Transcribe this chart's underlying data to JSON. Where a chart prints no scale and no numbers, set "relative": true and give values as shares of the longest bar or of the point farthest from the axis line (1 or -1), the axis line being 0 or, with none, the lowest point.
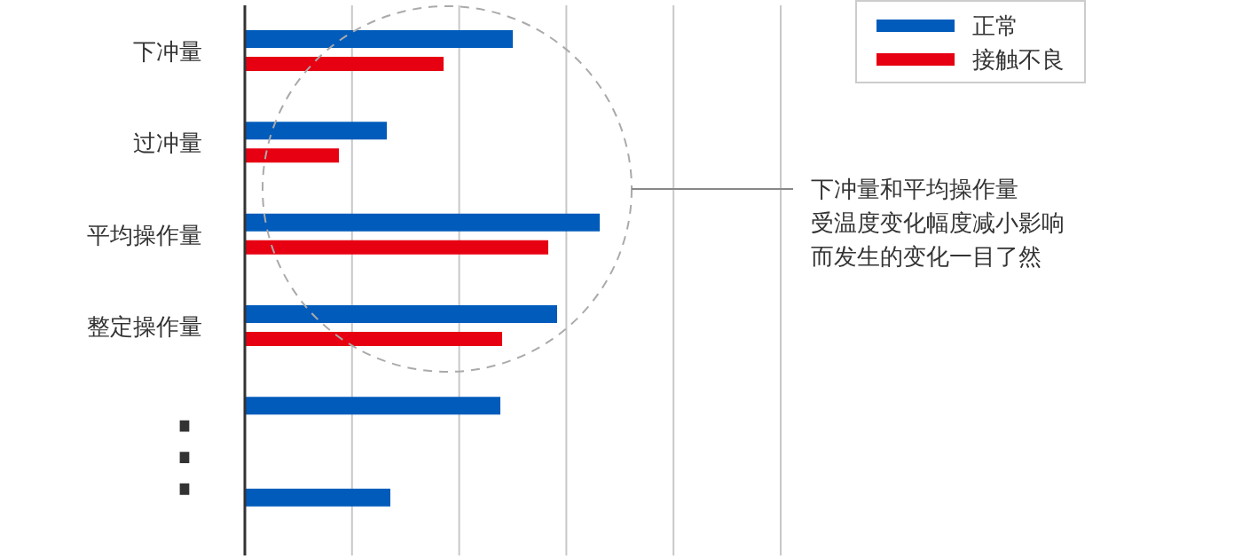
{
  "chart_data": {
    "type": "bar",
    "orientation": "horizontal",
    "relative": true,
    "categories": [
      "下冲量",
      "过冲量",
      "平均操作量",
      "整定操作量",
      null,
      null
    ],
    "series": [
      {
        "name": "正常",
        "color": "#005bbb",
        "values": [
          0.755,
          0.4,
          1,
          0.88,
          0.72,
          0.41
        ]
      },
      {
        "name": "接触不良",
        "color": "#e60012",
        "values": [
          0.56,
          0.265,
          0.855,
          0.725,
          null,
          null
        ]
      }
    ],
    "grid": "x",
    "legend": "top right",
    "annotations": [
      "下冲量和平均操作量",
      "受温度变化幅度减小影响",
      "而发生的变化一目了然",
      "⋮"
    ]
  }
}
